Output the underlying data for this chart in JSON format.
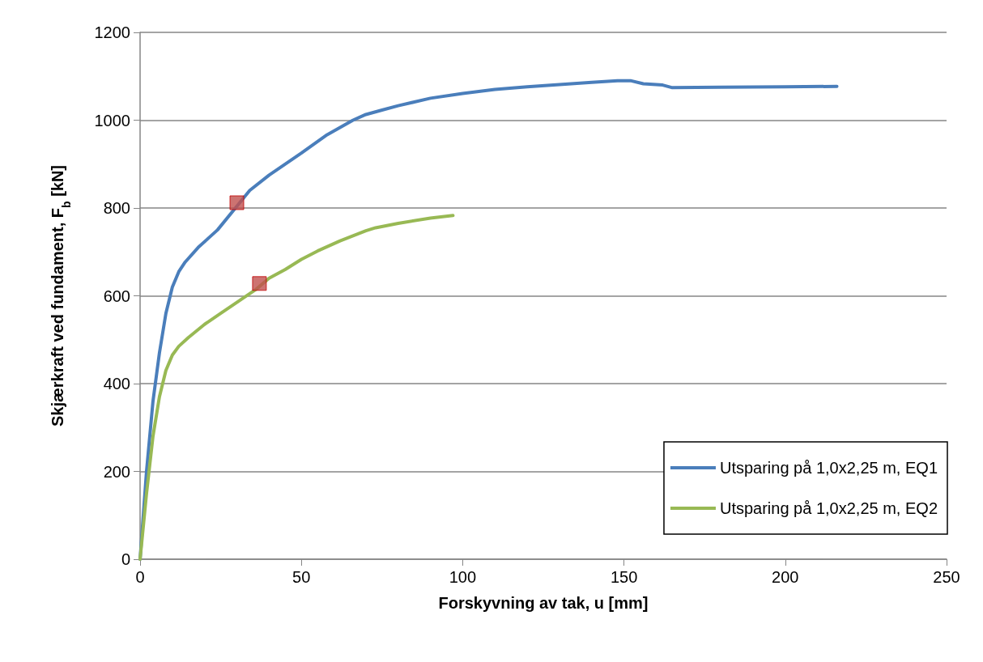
{
  "chart_data": {
    "type": "line",
    "xlabel": "Forskyvning av tak, u [mm]",
    "ylabel": "Skjærkraft ved fundament, F$_{b}$ [kN]",
    "xlim": [
      0,
      250
    ],
    "xticks": [
      0,
      50,
      100,
      150,
      200,
      250
    ],
    "ylim": [
      0,
      1200
    ],
    "yticks": [
      0,
      200,
      400,
      600,
      800,
      1000,
      1200
    ],
    "grid": "y",
    "legend": "bottom right",
    "marker": "none",
    "series": [
      {
        "name": "Utsparing på 1,0x2,25 m, EQ1",
        "color": "#4a7ebb",
        "x": [
          0,
          2,
          4,
          6,
          8,
          10,
          12,
          14,
          18,
          24,
          34,
          40,
          50,
          58,
          60,
          66,
          70,
          75,
          80,
          90,
          100,
          110,
          120,
          140,
          148,
          152,
          156,
          162,
          165,
          180,
          200,
          216
        ],
        "values": [
          0,
          200,
          360,
          470,
          560,
          620,
          655,
          677,
          710,
          750,
          840,
          875,
          925,
          967,
          975,
          1000,
          1013,
          1023,
          1033,
          1050,
          1061,
          1070,
          1076,
          1086,
          1090,
          1090,
          1083,
          1080,
          1074,
          1075,
          1076,
          1077
        ]
      },
      {
        "name": "Utsparing på 1,0x2,25 m, EQ2",
        "color": "#98b954",
        "x": [
          0,
          2,
          4,
          6,
          8,
          10,
          12,
          15,
          20,
          25,
          30,
          36,
          40,
          45,
          50,
          55,
          62,
          70,
          73,
          80,
          90,
          97
        ],
        "values": [
          0,
          150,
          280,
          370,
          430,
          465,
          485,
          505,
          535,
          560,
          585,
          615,
          640,
          660,
          683,
          702,
          725,
          748,
          755,
          765,
          777,
          783
        ]
      },
      {
        "type": "scatter",
        "marker": "square",
        "color": "#c0504d",
        "x": [
          30,
          37
        ],
        "values": [
          812,
          628
        ]
      }
    ]
  }
}
